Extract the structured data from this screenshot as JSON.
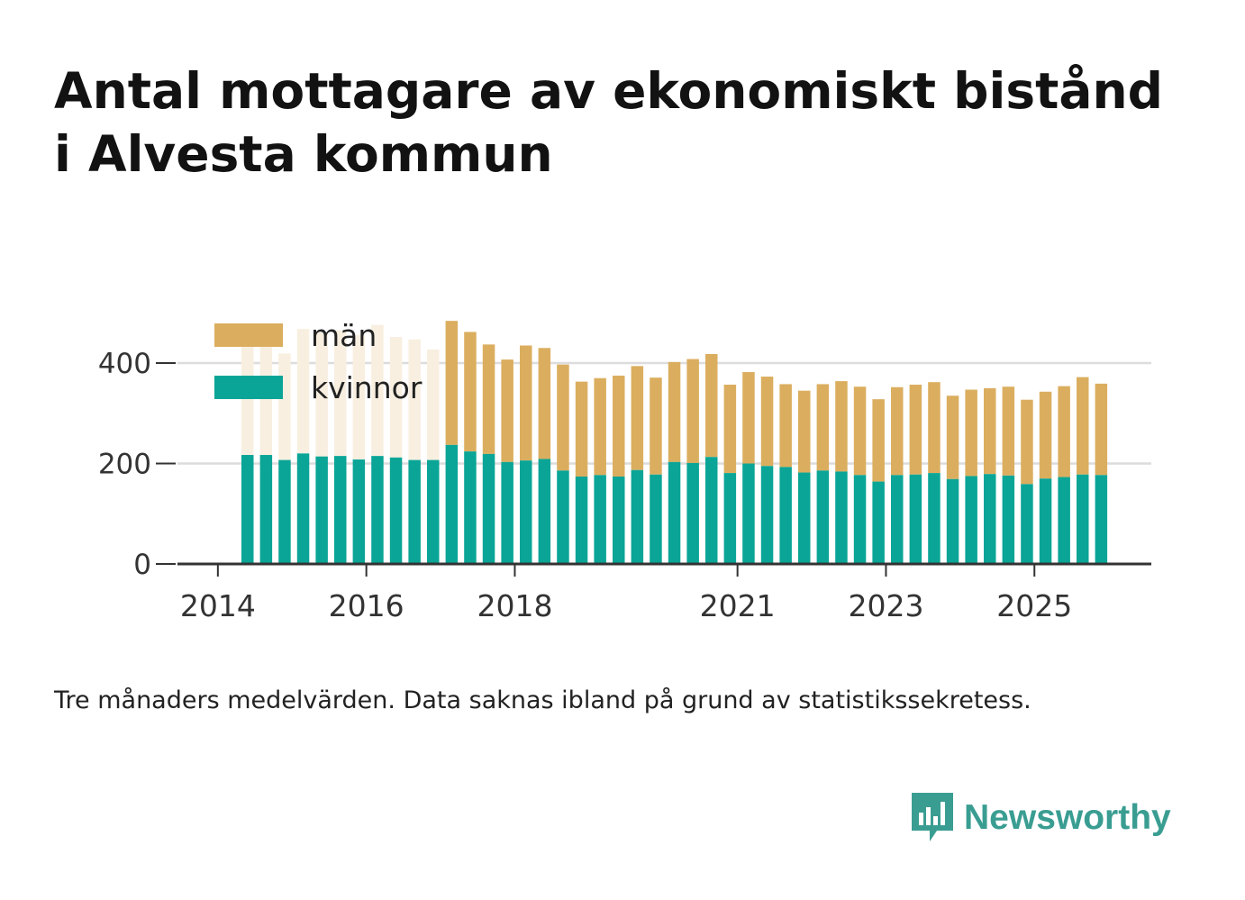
{
  "title_line1": "Antal mottagare av ekonomiskt bistånd",
  "title_line2": "i Alvesta kommun",
  "note": "Tre månaders medelvärden. Data saknas ibland på grund av statistikssekretess.",
  "brand": "Newsworthy",
  "colors": {
    "man": "#dbae5f",
    "man_light": "#f8efe0",
    "kvinnor": "#0aa597",
    "brand": "#3a9d92"
  },
  "chart_data": {
    "type": "bar",
    "stacked": true,
    "ylim": [
      0,
      500
    ],
    "yticks": [
      0,
      200,
      400
    ],
    "ytick_labels": [
      "0",
      "200",
      "400"
    ],
    "xticks": [
      {
        "label": "2014",
        "position": -1
      },
      {
        "label": "2016",
        "position": 7
      },
      {
        "label": "2018",
        "position": 15
      },
      {
        "label": "2021",
        "position": 27
      },
      {
        "label": "2023",
        "position": 35
      },
      {
        "label": "2025",
        "position": 43
      }
    ],
    "legend": {
      "placement": "top-left",
      "entries": [
        "män",
        "kvinnor"
      ]
    },
    "faded_upper_first_n": 11,
    "series": [
      {
        "name": "kvinnor",
        "values": [
          217,
          217,
          207,
          220,
          214,
          215,
          208,
          215,
          212,
          207,
          207,
          237,
          224,
          219,
          203,
          206,
          209,
          186,
          174,
          177,
          174,
          187,
          178,
          203,
          201,
          213,
          181,
          200,
          195,
          193,
          182,
          186,
          184,
          177,
          164,
          177,
          178,
          181,
          169,
          175,
          179,
          176,
          159,
          170,
          173,
          178,
          177
        ]
      },
      {
        "name": "män",
        "values": [
          224,
          218,
          212,
          248,
          247,
          250,
          248,
          261,
          240,
          240,
          220,
          247,
          238,
          218,
          204,
          229,
          221,
          211,
          189,
          193,
          201,
          207,
          193,
          199,
          207,
          205,
          176,
          182,
          178,
          165,
          163,
          172,
          180,
          176,
          164,
          175,
          179,
          181,
          166,
          172,
          171,
          177,
          168,
          173,
          181,
          194,
          182
        ]
      }
    ]
  }
}
